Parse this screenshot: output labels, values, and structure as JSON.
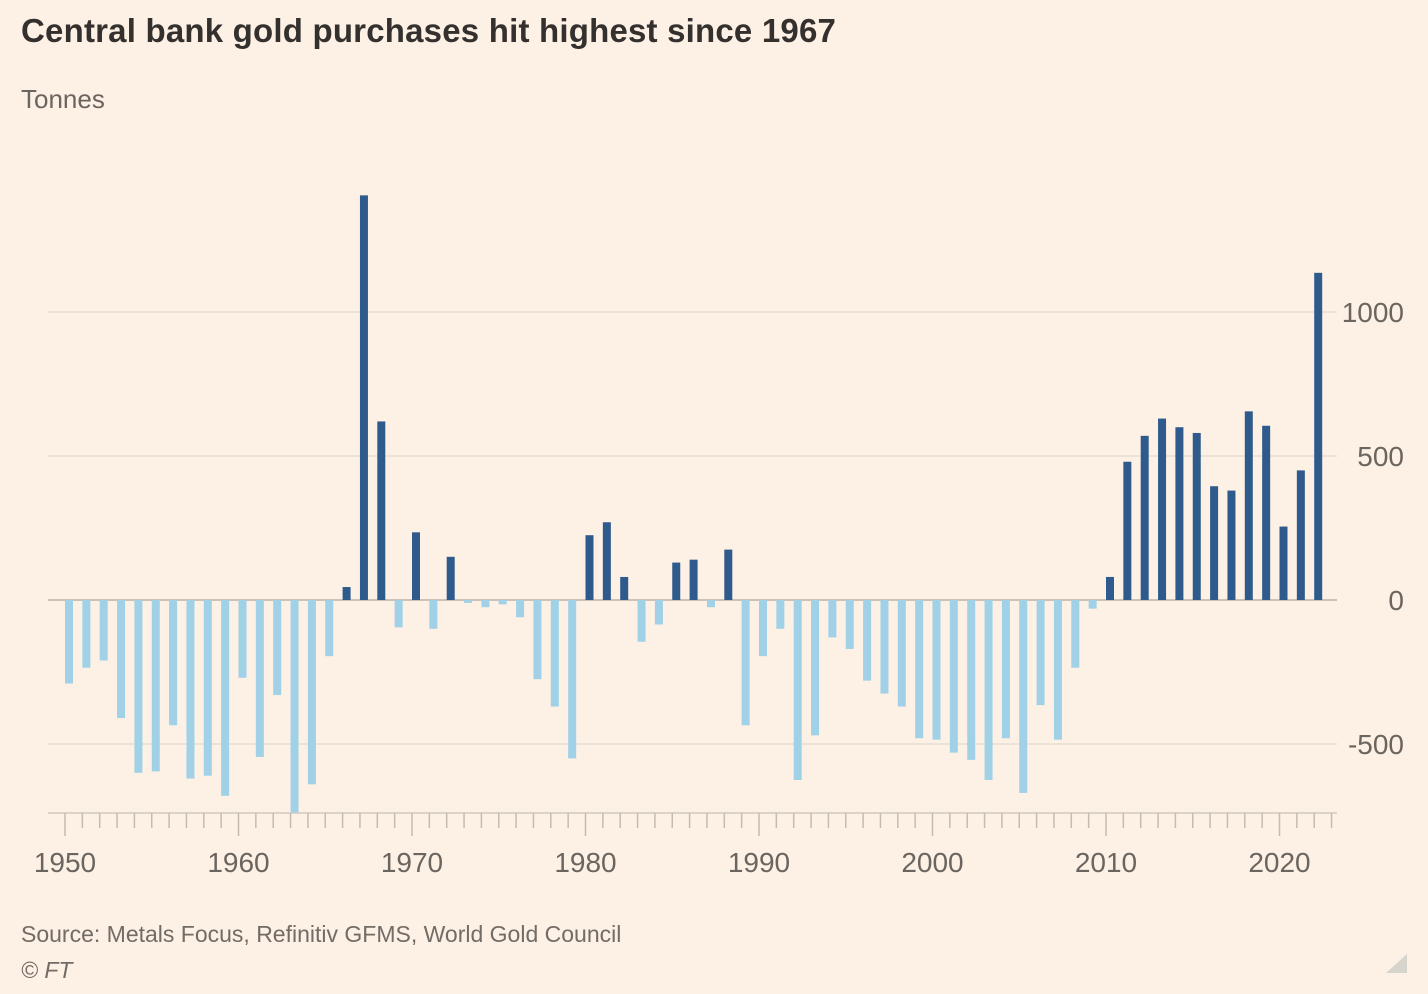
{
  "colors": {
    "background": "#fdf0e5",
    "positive_bar": "#2f5a8c",
    "negative_bar": "#a0d1e6",
    "gridline": "#ebe2d8",
    "zero_line": "#c9c3bc",
    "axis_line": "#cfc9c2",
    "axis_tick": "#c2bcb4",
    "axis_label_text": "#6b6560",
    "title_text": "#33302e",
    "source_text": "#716c66",
    "corner_triangle": "#d7d3cd"
  },
  "chart_data": {
    "type": "bar",
    "title": "Central bank gold purchases hit highest since 1967",
    "subtitle": "Tonnes",
    "source": "Source: Metals Focus, Refinitiv GFMS, World Gold Council",
    "copyright": "© FT",
    "legend": "none",
    "grid": "horizontal",
    "y_axis_side": "right",
    "ylim": [
      -800,
      1450
    ],
    "yticks": [
      1000,
      500,
      0,
      -500
    ],
    "xticks": [
      1950,
      1960,
      1970,
      1980,
      1990,
      2000,
      2010,
      2020
    ],
    "years": [
      1950,
      1951,
      1952,
      1953,
      1954,
      1955,
      1956,
      1957,
      1958,
      1959,
      1960,
      1961,
      1962,
      1963,
      1964,
      1965,
      1966,
      1967,
      1968,
      1969,
      1970,
      1971,
      1972,
      1973,
      1974,
      1975,
      1976,
      1977,
      1978,
      1979,
      1980,
      1981,
      1982,
      1983,
      1984,
      1985,
      1986,
      1987,
      1988,
      1989,
      1990,
      1991,
      1992,
      1993,
      1994,
      1995,
      1996,
      1997,
      1998,
      1999,
      2000,
      2001,
      2002,
      2003,
      2004,
      2005,
      2006,
      2007,
      2008,
      2009,
      2010,
      2011,
      2012,
      2013,
      2014,
      2015,
      2016,
      2017,
      2018,
      2019,
      2020,
      2021,
      2022
    ],
    "values": [
      -290,
      -235,
      -210,
      -410,
      -600,
      -595,
      -435,
      -620,
      -610,
      -680,
      -270,
      -545,
      -330,
      -740,
      -640,
      -195,
      45,
      1405,
      620,
      -95,
      235,
      -100,
      150,
      -10,
      -25,
      -15,
      -60,
      -275,
      -370,
      -550,
      225,
      270,
      80,
      -145,
      -85,
      130,
      140,
      -25,
      175,
      -435,
      -195,
      -100,
      -625,
      -470,
      -130,
      -170,
      -280,
      -325,
      -370,
      -480,
      -485,
      -530,
      -555,
      -625,
      -480,
      -670,
      -365,
      -485,
      -235,
      -30,
      80,
      480,
      570,
      630,
      600,
      580,
      395,
      380,
      655,
      605,
      255,
      450,
      1136
    ]
  }
}
